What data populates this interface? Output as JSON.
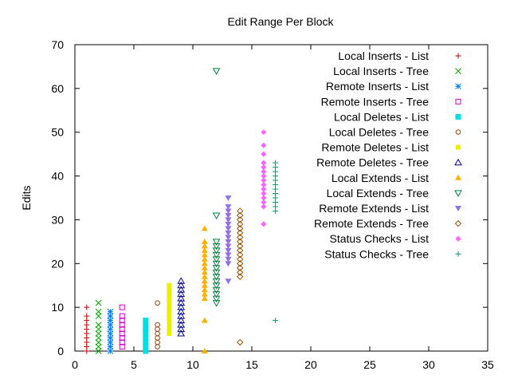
{
  "chart_data": {
    "type": "scatter",
    "title": "Edit Range Per Block",
    "xlabel": "",
    "ylabel": "Edits",
    "xlim": [
      0,
      35
    ],
    "ylim": [
      0,
      70
    ],
    "xticks": [
      0,
      5,
      10,
      15,
      20,
      25,
      30,
      35
    ],
    "yticks": [
      0,
      10,
      20,
      30,
      40,
      50,
      60,
      70
    ],
    "grid": false,
    "legend_position": "top-right",
    "series": [
      {
        "name": "Local Inserts - List",
        "marker": "plus",
        "color": "#cc0000",
        "points": [
          [
            1,
            0
          ],
          [
            1,
            1
          ],
          [
            1,
            2
          ],
          [
            1,
            3
          ],
          [
            1,
            4
          ],
          [
            1,
            5
          ],
          [
            1,
            6
          ],
          [
            1,
            7
          ],
          [
            1,
            8
          ],
          [
            1,
            10
          ]
        ]
      },
      {
        "name": "Local Inserts - Tree",
        "marker": "cross",
        "color": "#00aa00",
        "points": [
          [
            2,
            0
          ],
          [
            2,
            1
          ],
          [
            2,
            2
          ],
          [
            2,
            3
          ],
          [
            2,
            4
          ],
          [
            2,
            5
          ],
          [
            2,
            6
          ],
          [
            2,
            8
          ],
          [
            2,
            9
          ],
          [
            2,
            11
          ]
        ]
      },
      {
        "name": "Remote Inserts - List",
        "marker": "star",
        "color": "#0080ff",
        "points": [
          [
            3,
            0
          ],
          [
            3,
            1
          ],
          [
            3,
            2
          ],
          [
            3,
            3
          ],
          [
            3,
            4
          ],
          [
            3,
            5
          ],
          [
            3,
            6
          ],
          [
            3,
            7
          ],
          [
            3,
            8
          ],
          [
            3,
            9
          ]
        ]
      },
      {
        "name": "Remote Inserts - Tree",
        "marker": "open-square",
        "color": "#cc00cc",
        "points": [
          [
            4,
            1
          ],
          [
            4,
            2
          ],
          [
            4,
            3
          ],
          [
            4,
            4
          ],
          [
            4,
            5
          ],
          [
            4,
            6
          ],
          [
            4,
            7
          ],
          [
            4,
            8
          ],
          [
            4,
            10
          ]
        ]
      },
      {
        "name": "Local Deletes - List",
        "marker": "filled-square",
        "color": "#00e0e0",
        "points": [
          [
            6,
            0
          ],
          [
            6,
            1
          ],
          [
            6,
            2
          ],
          [
            6,
            3
          ],
          [
            6,
            4
          ],
          [
            6,
            5
          ],
          [
            6,
            6
          ],
          [
            6,
            7
          ]
        ]
      },
      {
        "name": "Local Deletes - Tree",
        "marker": "open-circle",
        "color": "#a04000",
        "points": [
          [
            7,
            1
          ],
          [
            7,
            2
          ],
          [
            7,
            3
          ],
          [
            7,
            4
          ],
          [
            7,
            5
          ],
          [
            7,
            6
          ],
          [
            7,
            11
          ]
        ]
      },
      {
        "name": "Remote Deletes - List",
        "marker": "filled-square-small",
        "color": "#eeee00",
        "points": [
          [
            8,
            4
          ],
          [
            8,
            5
          ],
          [
            8,
            6
          ],
          [
            8,
            7
          ],
          [
            8,
            8
          ],
          [
            8,
            9
          ],
          [
            8,
            10
          ],
          [
            8,
            11
          ],
          [
            8,
            12
          ],
          [
            8,
            13
          ],
          [
            8,
            14
          ],
          [
            8,
            15
          ]
        ]
      },
      {
        "name": "Remote Deletes - Tree",
        "marker": "open-triangle",
        "color": "#000099",
        "points": [
          [
            9,
            4
          ],
          [
            9,
            5
          ],
          [
            9,
            6
          ],
          [
            9,
            7
          ],
          [
            9,
            8
          ],
          [
            9,
            9
          ],
          [
            9,
            10
          ],
          [
            9,
            11
          ],
          [
            9,
            12
          ],
          [
            9,
            13
          ],
          [
            9,
            14
          ],
          [
            9,
            15
          ],
          [
            9,
            16
          ]
        ]
      },
      {
        "name": "Local Extends - List",
        "marker": "filled-triangle",
        "color": "#ffb000",
        "points": [
          [
            11,
            0
          ],
          [
            11,
            7
          ],
          [
            11,
            12
          ],
          [
            11,
            13
          ],
          [
            11,
            14
          ],
          [
            11,
            15
          ],
          [
            11,
            16
          ],
          [
            11,
            17
          ],
          [
            11,
            18
          ],
          [
            11,
            19
          ],
          [
            11,
            20
          ],
          [
            11,
            21
          ],
          [
            11,
            22
          ],
          [
            11,
            23
          ],
          [
            11,
            24
          ],
          [
            11,
            25
          ],
          [
            11,
            28
          ]
        ]
      },
      {
        "name": "Local Extends - Tree",
        "marker": "open-triangle-down",
        "color": "#008040",
        "points": [
          [
            12,
            11
          ],
          [
            12,
            12
          ],
          [
            12,
            13
          ],
          [
            12,
            14
          ],
          [
            12,
            15
          ],
          [
            12,
            16
          ],
          [
            12,
            17
          ],
          [
            12,
            18
          ],
          [
            12,
            19
          ],
          [
            12,
            20
          ],
          [
            12,
            21
          ],
          [
            12,
            22
          ],
          [
            12,
            23
          ],
          [
            12,
            24
          ],
          [
            12,
            25
          ],
          [
            12,
            31
          ],
          [
            12,
            64
          ]
        ]
      },
      {
        "name": "Remote Extends - List",
        "marker": "filled-triangle-down",
        "color": "#9370ee",
        "points": [
          [
            13,
            16
          ],
          [
            13,
            20
          ],
          [
            13,
            21
          ],
          [
            13,
            22
          ],
          [
            13,
            23
          ],
          [
            13,
            24
          ],
          [
            13,
            25
          ],
          [
            13,
            26
          ],
          [
            13,
            27
          ],
          [
            13,
            28
          ],
          [
            13,
            29
          ],
          [
            13,
            30
          ],
          [
            13,
            31
          ],
          [
            13,
            32
          ],
          [
            13,
            33
          ],
          [
            13,
            35
          ]
        ]
      },
      {
        "name": "Remote Extends - Tree",
        "marker": "open-diamond",
        "color": "#a05000",
        "points": [
          [
            14,
            2
          ],
          [
            14,
            17
          ],
          [
            14,
            18
          ],
          [
            14,
            19
          ],
          [
            14,
            20
          ],
          [
            14,
            21
          ],
          [
            14,
            22
          ],
          [
            14,
            23
          ],
          [
            14,
            24
          ],
          [
            14,
            25
          ],
          [
            14,
            26
          ],
          [
            14,
            27
          ],
          [
            14,
            28
          ],
          [
            14,
            29
          ],
          [
            14,
            30
          ],
          [
            14,
            31
          ],
          [
            14,
            32
          ]
        ]
      },
      {
        "name": "Status Checks - List",
        "marker": "filled-diamond",
        "color": "#ff60ff",
        "points": [
          [
            16,
            29
          ],
          [
            16,
            33
          ],
          [
            16,
            34
          ],
          [
            16,
            35
          ],
          [
            16,
            36
          ],
          [
            16,
            37
          ],
          [
            16,
            38
          ],
          [
            16,
            39
          ],
          [
            16,
            40
          ],
          [
            16,
            41
          ],
          [
            16,
            42
          ],
          [
            16,
            43
          ],
          [
            16,
            45
          ],
          [
            16,
            47
          ],
          [
            16,
            50
          ]
        ]
      },
      {
        "name": "Status Checks - Tree",
        "marker": "plus",
        "color": "#00a060",
        "points": [
          [
            17,
            7
          ],
          [
            17,
            32
          ],
          [
            17,
            33
          ],
          [
            17,
            34
          ],
          [
            17,
            35
          ],
          [
            17,
            36
          ],
          [
            17,
            37
          ],
          [
            17,
            38
          ],
          [
            17,
            39
          ],
          [
            17,
            40
          ],
          [
            17,
            41
          ],
          [
            17,
            42
          ],
          [
            17,
            43
          ]
        ]
      }
    ]
  }
}
